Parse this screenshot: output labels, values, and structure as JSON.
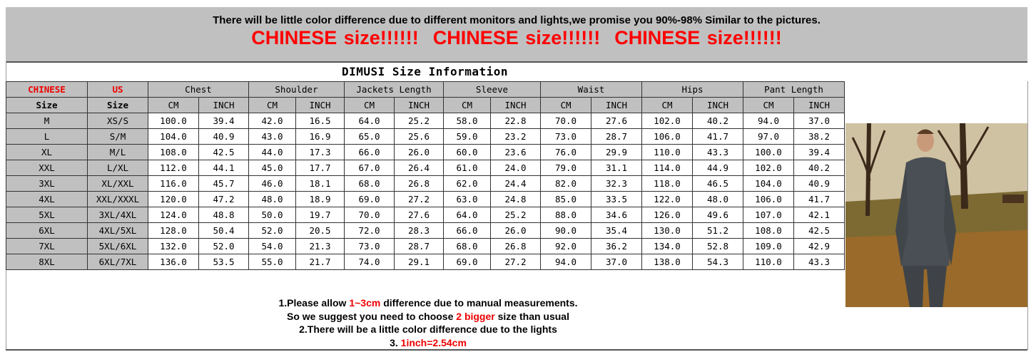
{
  "banner": {
    "disclaimer": "There will be little color difference due to different monitors and lights,we promise you 90%-98%  Similar to the pictures.",
    "warning": "CHINESE size!!!!!!",
    "accent": "#ff0000"
  },
  "table": {
    "title": "DIMUSI  Size Information",
    "size_headers": [
      {
        "top": "CHINESE",
        "bottom": "Size"
      },
      {
        "top": "US",
        "bottom": "Size"
      }
    ],
    "groups": [
      "Chest",
      "Shoulder",
      "Jackets Length",
      "Sleeve",
      "Waist",
      "Hips",
      "Pant Length"
    ],
    "units": [
      "CM",
      "INCH"
    ],
    "rows": [
      [
        "M",
        "XS/S",
        "100.0",
        "39.4",
        "42.0",
        "16.5",
        "64.0",
        "25.2",
        "58.0",
        "22.8",
        "70.0",
        "27.6",
        "102.0",
        "40.2",
        "94.0",
        "37.0"
      ],
      [
        "L",
        "S/M",
        "104.0",
        "40.9",
        "43.0",
        "16.9",
        "65.0",
        "25.6",
        "59.0",
        "23.2",
        "73.0",
        "28.7",
        "106.0",
        "41.7",
        "97.0",
        "38.2"
      ],
      [
        "XL",
        "M/L",
        "108.0",
        "42.5",
        "44.0",
        "17.3",
        "66.0",
        "26.0",
        "60.0",
        "23.6",
        "76.0",
        "29.9",
        "110.0",
        "43.3",
        "100.0",
        "39.4"
      ],
      [
        "XXL",
        "L/XL",
        "112.0",
        "44.1",
        "45.0",
        "17.7",
        "67.0",
        "26.4",
        "61.0",
        "24.0",
        "79.0",
        "31.1",
        "114.0",
        "44.9",
        "102.0",
        "40.2"
      ],
      [
        "3XL",
        "XL/XXL",
        "116.0",
        "45.7",
        "46.0",
        "18.1",
        "68.0",
        "26.8",
        "62.0",
        "24.4",
        "82.0",
        "32.3",
        "118.0",
        "46.5",
        "104.0",
        "40.9"
      ],
      [
        "4XL",
        "XXL/XXXL",
        "120.0",
        "47.2",
        "48.0",
        "18.9",
        "69.0",
        "27.2",
        "63.0",
        "24.8",
        "85.0",
        "33.5",
        "122.0",
        "48.0",
        "106.0",
        "41.7"
      ],
      [
        "5XL",
        "3XL/4XL",
        "124.0",
        "48.8",
        "50.0",
        "19.7",
        "70.0",
        "27.6",
        "64.0",
        "25.2",
        "88.0",
        "34.6",
        "126.0",
        "49.6",
        "107.0",
        "42.1"
      ],
      [
        "6XL",
        "4XL/5XL",
        "128.0",
        "50.4",
        "52.0",
        "20.5",
        "72.0",
        "28.3",
        "66.0",
        "26.0",
        "90.0",
        "35.4",
        "130.0",
        "51.2",
        "108.0",
        "42.5"
      ],
      [
        "7XL",
        "5XL/6XL",
        "132.0",
        "52.0",
        "54.0",
        "21.3",
        "73.0",
        "28.7",
        "68.0",
        "26.8",
        "92.0",
        "36.2",
        "134.0",
        "52.8",
        "109.0",
        "42.9"
      ],
      [
        "8XL",
        "6XL/7XL",
        "136.0",
        "53.5",
        "55.0",
        "21.7",
        "74.0",
        "29.1",
        "69.0",
        "27.2",
        "94.0",
        "37.0",
        "138.0",
        "54.3",
        "110.0",
        "43.3"
      ]
    ]
  },
  "notes": {
    "l1a": "1.Please allow ",
    "l1b": "1~3cm",
    "l1c": " difference due to manual measurements.",
    "l2a": "So we suggest you need to choose ",
    "l2b": "2 bigger",
    "l2c": " size than usual",
    "l3": "2.There will be a little color difference due to the lights",
    "l4a": "3. ",
    "l4b": "1inch=2.54cm"
  }
}
